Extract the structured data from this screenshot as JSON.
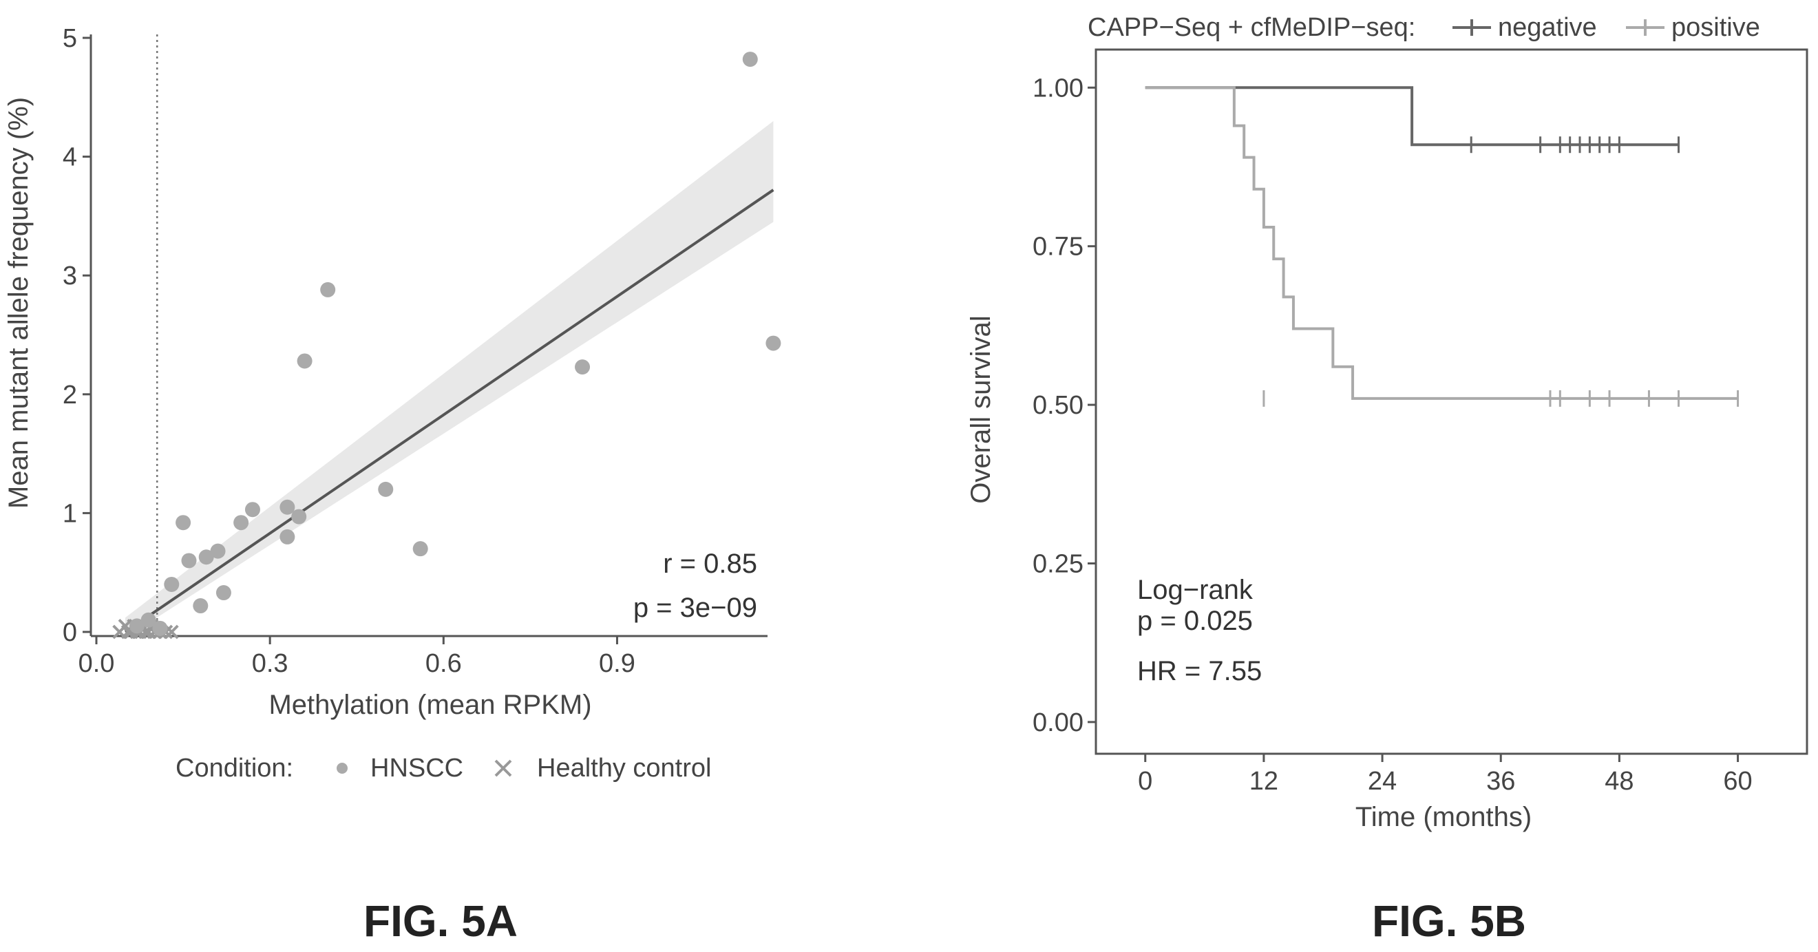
{
  "figures": {
    "a_caption": "FIG. 5A",
    "b_caption": "FIG. 5B"
  },
  "chart_data": [
    {
      "id": "fig5a",
      "type": "scatter",
      "xlabel": "Methylation (mean RPKM)",
      "ylabel": "Mean mutant allele frequency (%)",
      "xlim": [
        0.0,
        1.16
      ],
      "ylim": [
        0,
        5
      ],
      "xticks": [
        "0.0",
        "0.3",
        "0.6",
        "0.9"
      ],
      "xtick_values": [
        0.0,
        0.3,
        0.6,
        0.9
      ],
      "yticks": [
        "0",
        "1",
        "2",
        "3",
        "4",
        "5"
      ],
      "ytick_values": [
        0,
        1,
        2,
        3,
        4,
        5
      ],
      "threshold_x": 0.105,
      "annotation_r": "r = 0.85",
      "annotation_p": "p = 3e−09",
      "legend_title": "Condition:",
      "legend_items": [
        "HNSCC",
        "Healthy control"
      ],
      "colors": {
        "points": "#aaaaaa",
        "line": "#555555",
        "band": "#cccccc",
        "controls": "#999999"
      },
      "series": [
        {
          "name": "HNSCC",
          "x": [
            0.07,
            0.09,
            0.11,
            0.13,
            0.15,
            0.16,
            0.18,
            0.19,
            0.21,
            0.22,
            0.25,
            0.27,
            0.33,
            0.33,
            0.35,
            0.36,
            0.4,
            0.5,
            0.56,
            0.84,
            1.13,
            1.17
          ],
          "y": [
            0.05,
            0.1,
            0.03,
            0.4,
            0.92,
            0.6,
            0.22,
            0.63,
            0.68,
            0.33,
            0.92,
            1.03,
            1.05,
            0.8,
            0.97,
            2.28,
            2.88,
            1.2,
            0.7,
            2.23,
            4.82,
            2.43
          ]
        },
        {
          "name": "Healthy control",
          "x": [
            0.04,
            0.05,
            0.055,
            0.06,
            0.065,
            0.07,
            0.075,
            0.08,
            0.085,
            0.09,
            0.095,
            0.1,
            0.105,
            0.11,
            0.12,
            0.13
          ],
          "y": [
            0.0,
            0.05,
            0.0,
            0.0,
            0.05,
            0.0,
            0.0,
            0.02,
            0.0,
            0.0,
            0.05,
            0.0,
            0.02,
            0.0,
            0.0,
            0.0
          ]
        }
      ],
      "fit": {
        "x": [
          0.05,
          1.17
        ],
        "y": [
          0.0,
          3.72
        ],
        "ci_low_end": 3.45,
        "ci_high_end": 4.3
      }
    },
    {
      "id": "fig5b",
      "type": "line",
      "xlabel": "Time (months)",
      "ylabel": "Overall survival",
      "xlim": [
        -5,
        67
      ],
      "ylim": [
        -0.05,
        1.06
      ],
      "xticks": [
        "0",
        "12",
        "24",
        "36",
        "48",
        "60"
      ],
      "xtick_values": [
        0,
        12,
        24,
        36,
        48,
        60
      ],
      "yticks": [
        "0.00",
        "0.25",
        "0.50",
        "0.75",
        "1.00"
      ],
      "ytick_values": [
        0.0,
        0.25,
        0.5,
        0.75,
        1.0
      ],
      "legend_title": "CAPP−Seq + cfMeDIP−seq:",
      "legend_items": [
        "negative",
        "positive"
      ],
      "annotation_logrank": "Log−rank",
      "annotation_p": "p = 0.025",
      "annotation_hr": "HR = 7.55",
      "colors": {
        "negative": "#666666",
        "positive": "#aaaaaa"
      },
      "series": [
        {
          "name": "negative",
          "steps_x": [
            0,
            27,
            27,
            54
          ],
          "steps_y": [
            1.0,
            1.0,
            0.91,
            0.91
          ],
          "censor_x": [
            33,
            40,
            42,
            43,
            44,
            45,
            46,
            47,
            48,
            54
          ],
          "censor_y": 0.91
        },
        {
          "name": "positive",
          "steps_x": [
            0,
            9,
            9,
            10,
            10,
            11,
            11,
            12,
            12,
            13,
            13,
            14,
            14,
            15,
            15,
            19,
            19,
            21,
            21,
            22,
            22,
            60
          ],
          "steps_y": [
            1.0,
            1.0,
            0.94,
            0.94,
            0.89,
            0.89,
            0.84,
            0.84,
            0.78,
            0.78,
            0.73,
            0.73,
            0.67,
            0.67,
            0.62,
            0.62,
            0.56,
            0.56,
            0.51,
            0.51,
            0.51,
            0.51
          ],
          "censor_x": [
            12,
            41,
            42,
            45,
            47,
            51,
            54,
            60
          ],
          "censor_y": 0.51
        }
      ]
    }
  ]
}
